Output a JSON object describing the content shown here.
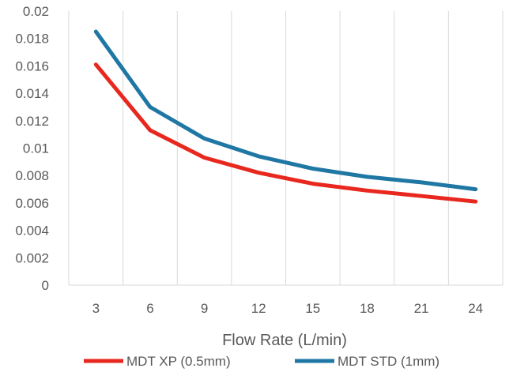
{
  "chart_data": {
    "type": "line",
    "title": "",
    "xlabel": "Flow Rate (L/min)",
    "ylabel": "",
    "categories": [
      "3",
      "6",
      "9",
      "12",
      "15",
      "18",
      "21",
      "24"
    ],
    "y_ticks": [
      "0",
      "0.002",
      "0.004",
      "0.006",
      "0.008",
      "0.01",
      "0.012",
      "0.014",
      "0.016",
      "0.018",
      "0.02"
    ],
    "ylim": [
      0,
      0.02
    ],
    "grid": "vertical",
    "legend_position": "bottom",
    "series": [
      {
        "name": "MDT XP (0.5mm)",
        "color": "#e8281e",
        "values": [
          0.0161,
          0.0113,
          0.0093,
          0.0082,
          0.0074,
          0.0069,
          0.0065,
          0.0061
        ]
      },
      {
        "name": "MDT STD (1mm)",
        "color": "#1f77a4",
        "values": [
          0.0185,
          0.013,
          0.0107,
          0.0094,
          0.0085,
          0.0079,
          0.0075,
          0.007
        ]
      }
    ]
  }
}
